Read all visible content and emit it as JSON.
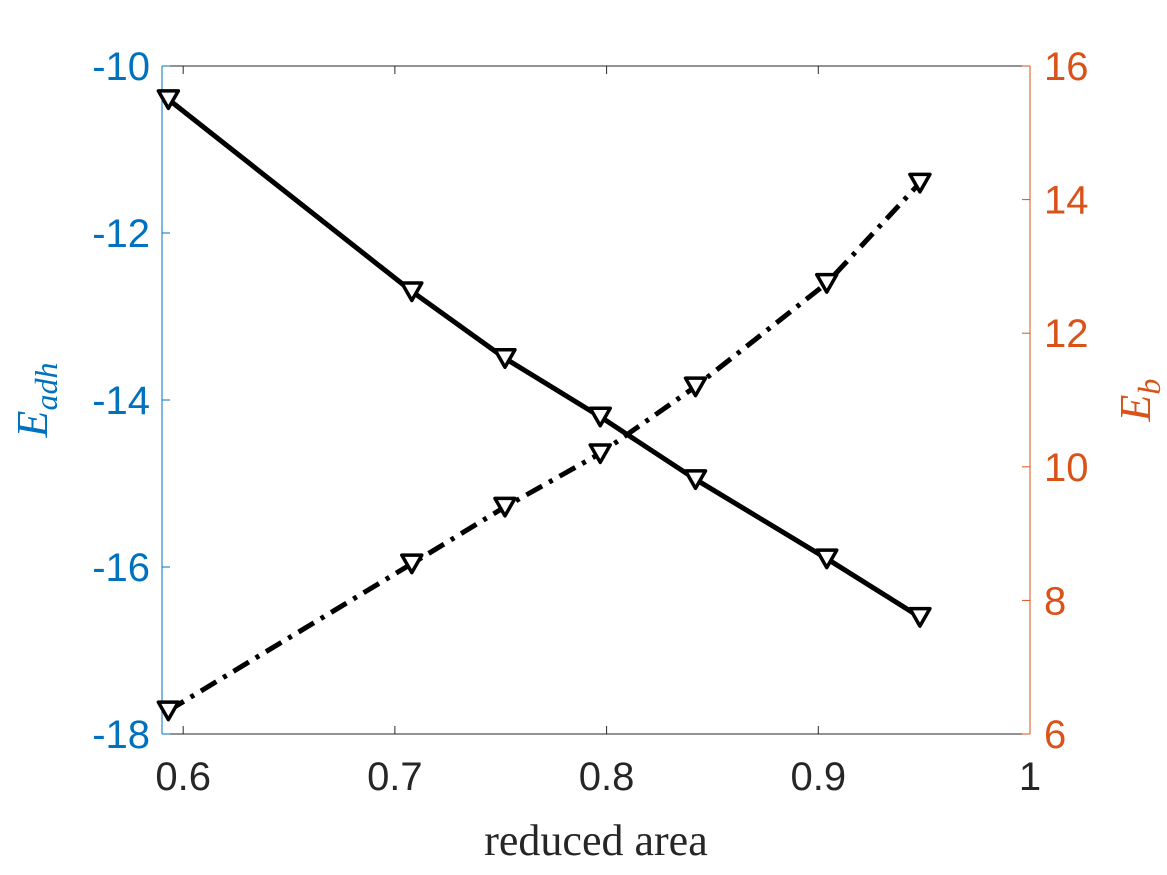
{
  "chart_data": {
    "type": "line",
    "xlabel": "reduced area",
    "ylabel_left": {
      "main": "E",
      "sub": "adh"
    },
    "ylabel_right": {
      "main": "E",
      "sub": "b"
    },
    "xlim": [
      0.59,
      1.0
    ],
    "ylim_left": [
      -18,
      -10
    ],
    "ylim_right": [
      6,
      16
    ],
    "xticks": [
      0.6,
      0.7,
      0.8,
      0.9,
      1
    ],
    "xtick_labels": [
      "0.6",
      "0.7",
      "0.8",
      "0.9",
      "1"
    ],
    "yticks_left": [
      -10,
      -12,
      -14,
      -16,
      -18
    ],
    "ytick_labels_left": [
      "-10",
      "-12",
      "-14",
      "-16",
      "-18"
    ],
    "yticks_right": [
      16,
      14,
      12,
      10,
      8,
      6
    ],
    "ytick_labels_right": [
      "16",
      "14",
      "12",
      "10",
      "8",
      "6"
    ],
    "grid": false,
    "legend": "none",
    "colors": {
      "left_axis": "#0072BD",
      "right_axis": "#D95319",
      "x_axis": "#262626",
      "series": "#000000"
    },
    "series": [
      {
        "axis": "left",
        "line_style": "solid",
        "marker": "triangle-down",
        "x": [
          0.593,
          0.708,
          0.752,
          0.797,
          0.842,
          0.904,
          0.948
        ],
        "y": [
          -10.4,
          -12.7,
          -13.5,
          -14.2,
          -14.95,
          -15.9,
          -16.6
        ]
      },
      {
        "axis": "right",
        "line_style": "dashdot",
        "marker": "triangle-down",
        "x": [
          0.593,
          0.708,
          0.752,
          0.797,
          0.842,
          0.904,
          0.948
        ],
        "y": [
          6.35,
          8.55,
          9.4,
          10.2,
          11.2,
          12.75,
          14.25
        ]
      }
    ]
  }
}
